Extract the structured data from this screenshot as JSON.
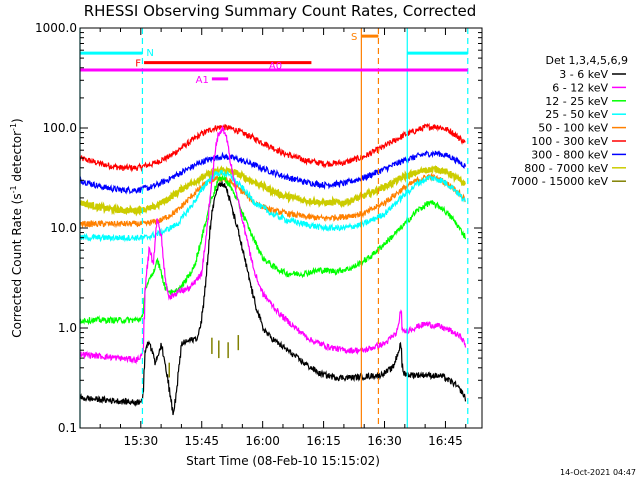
{
  "chart_data": {
    "type": "line",
    "title": "RHESSI Observing Summary Count Rates, Corrected",
    "xlabel": "Start Time (08-Feb-10 15:15:02)",
    "ylabel_main": "Corrected Count Rate (s",
    "ylabel_sup": "-1",
    "ylabel_rest": " detector",
    "ylabel_close": ")",
    "x_unit": "minutes since 15:00",
    "xlim": [
      15.03,
      114
    ],
    "ylim": [
      0.1,
      1000
    ],
    "yscale": "log",
    "grid": false,
    "legend_placement": "right",
    "detector_label": "Det 1,3,4,5,6,9",
    "x_ticks": [
      {
        "value": 30,
        "label": "15:30"
      },
      {
        "value": 45,
        "label": "15:45"
      },
      {
        "value": 60,
        "label": "16:00"
      },
      {
        "value": 75,
        "label": "16:15"
      },
      {
        "value": 90,
        "label": "16:30"
      },
      {
        "value": 105,
        "label": "16:45"
      }
    ],
    "y_ticks": [
      {
        "value": 0.1,
        "label": "0.1"
      },
      {
        "value": 1,
        "label": "1.0"
      },
      {
        "value": 10,
        "label": "10.0"
      },
      {
        "value": 100,
        "label": "100.0"
      },
      {
        "value": 1000,
        "label": "1000.0"
      }
    ],
    "series": [
      {
        "name": "3 - 6 keV",
        "color": "#000000",
        "points": [
          [
            15.0,
            0.2
          ],
          [
            29.0,
            0.18
          ],
          [
            30.5,
            0.2
          ],
          [
            31.0,
            0.6
          ],
          [
            32.0,
            0.75
          ],
          [
            33.5,
            0.45
          ],
          [
            35.0,
            0.7
          ],
          [
            36.5,
            0.32
          ],
          [
            38.0,
            0.13
          ],
          [
            40.0,
            0.7
          ],
          [
            42.0,
            0.75
          ],
          [
            44.0,
            0.8
          ],
          [
            45.0,
            1.3
          ],
          [
            46.0,
            3
          ],
          [
            47.0,
            10
          ],
          [
            48.0,
            20
          ],
          [
            49.0,
            27
          ],
          [
            50.0,
            28
          ],
          [
            51.0,
            25
          ],
          [
            52.0,
            18
          ],
          [
            54.0,
            9
          ],
          [
            56.0,
            4
          ],
          [
            58.0,
            1.8
          ],
          [
            60.0,
            1.0
          ],
          [
            62.0,
            0.8
          ],
          [
            66.0,
            0.6
          ],
          [
            70.0,
            0.45
          ],
          [
            74.0,
            0.35
          ],
          [
            78.0,
            0.32
          ],
          [
            82.0,
            0.32
          ],
          [
            86.0,
            0.33
          ],
          [
            89.0,
            0.34
          ],
          [
            92.0,
            0.4
          ],
          [
            94.0,
            0.7
          ],
          [
            94.4,
            0.36
          ],
          [
            96.0,
            0.34
          ],
          [
            100.0,
            0.34
          ],
          [
            104.0,
            0.33
          ],
          [
            107.0,
            0.28
          ],
          [
            109.0,
            0.23
          ],
          [
            110.0,
            0.19
          ]
        ]
      },
      {
        "name": "6 - 12 keV",
        "color": "#ff00ff",
        "points": [
          [
            15.0,
            0.55
          ],
          [
            29.0,
            0.48
          ],
          [
            30.5,
            0.55
          ],
          [
            31.0,
            2.5
          ],
          [
            32.0,
            6
          ],
          [
            33.0,
            4.5
          ],
          [
            34.0,
            13
          ],
          [
            35.0,
            8
          ],
          [
            36.0,
            3
          ],
          [
            37.0,
            2
          ],
          [
            39.0,
            2.3
          ],
          [
            42.0,
            2.5
          ],
          [
            45.0,
            3.5
          ],
          [
            46.0,
            8
          ],
          [
            47.0,
            20
          ],
          [
            48.0,
            50
          ],
          [
            49.0,
            85
          ],
          [
            50.0,
            100
          ],
          [
            51.0,
            85
          ],
          [
            52.0,
            45
          ],
          [
            54.0,
            18
          ],
          [
            56.0,
            8
          ],
          [
            58.0,
            3.5
          ],
          [
            60.0,
            2.2
          ],
          [
            64.0,
            1.4
          ],
          [
            68.0,
            1.0
          ],
          [
            72.0,
            0.75
          ],
          [
            76.0,
            0.65
          ],
          [
            80.0,
            0.6
          ],
          [
            85.0,
            0.6
          ],
          [
            90.0,
            0.7
          ],
          [
            93.0,
            0.9
          ],
          [
            94.0,
            1.5
          ],
          [
            94.4,
            0.9
          ],
          [
            97.0,
            1.0
          ],
          [
            100.0,
            1.1
          ],
          [
            103.0,
            1.05
          ],
          [
            106.0,
            0.95
          ],
          [
            109.0,
            0.8
          ],
          [
            110.0,
            0.65
          ]
        ]
      },
      {
        "name": "12 - 25 keV",
        "color": "#00ff00",
        "points": [
          [
            15.0,
            1.2
          ],
          [
            29.0,
            1.2
          ],
          [
            30.5,
            1.3
          ],
          [
            31.0,
            2.5
          ],
          [
            33.0,
            3.5
          ],
          [
            34.0,
            5
          ],
          [
            36.0,
            2.5
          ],
          [
            38.0,
            2.2
          ],
          [
            40.0,
            2.6
          ],
          [
            43.0,
            4
          ],
          [
            45.0,
            8
          ],
          [
            47.0,
            18
          ],
          [
            49.0,
            30
          ],
          [
            50.0,
            32
          ],
          [
            51.0,
            30
          ],
          [
            53.0,
            22
          ],
          [
            55.0,
            14
          ],
          [
            57.0,
            9
          ],
          [
            60.0,
            5
          ],
          [
            63.0,
            4
          ],
          [
            66.0,
            3.5
          ],
          [
            70.0,
            3.5
          ],
          [
            74.0,
            3.8
          ],
          [
            78.0,
            3.7
          ],
          [
            82.0,
            4
          ],
          [
            86.0,
            5
          ],
          [
            90.0,
            7
          ],
          [
            94.0,
            10
          ],
          [
            98.0,
            15
          ],
          [
            101.0,
            18
          ],
          [
            104.0,
            16
          ],
          [
            107.0,
            12
          ],
          [
            110.0,
            8
          ]
        ]
      },
      {
        "name": "25 - 50 keV",
        "color": "#00ffff",
        "points": [
          [
            15.0,
            8
          ],
          [
            29.0,
            8
          ],
          [
            31.0,
            8
          ],
          [
            35.0,
            9
          ],
          [
            39.0,
            11
          ],
          [
            43.0,
            18
          ],
          [
            46.0,
            28
          ],
          [
            48.0,
            34
          ],
          [
            50.0,
            36
          ],
          [
            52.0,
            33
          ],
          [
            55.0,
            25
          ],
          [
            58.0,
            18
          ],
          [
            62.0,
            14
          ],
          [
            66.0,
            12
          ],
          [
            70.0,
            11
          ],
          [
            75.0,
            10
          ],
          [
            80.0,
            10
          ],
          [
            85.0,
            11
          ],
          [
            90.0,
            14
          ],
          [
            94.0,
            20
          ],
          [
            98.0,
            28
          ],
          [
            101.0,
            32
          ],
          [
            104.0,
            30
          ],
          [
            107.0,
            25
          ],
          [
            110.0,
            18
          ]
        ]
      },
      {
        "name": "50 - 100 keV",
        "color": "#ff8000",
        "points": [
          [
            15.0,
            11
          ],
          [
            29.0,
            11
          ],
          [
            31.0,
            11
          ],
          [
            35.0,
            12
          ],
          [
            39.0,
            15
          ],
          [
            43.0,
            22
          ],
          [
            46.0,
            28
          ],
          [
            48.0,
            31
          ],
          [
            50.0,
            31
          ],
          [
            52.0,
            29
          ],
          [
            55.0,
            23
          ],
          [
            58.0,
            18
          ],
          [
            62.0,
            15
          ],
          [
            66.0,
            14
          ],
          [
            70.0,
            13
          ],
          [
            75.0,
            12.5
          ],
          [
            80.0,
            13
          ],
          [
            85.0,
            14
          ],
          [
            90.0,
            18
          ],
          [
            94.0,
            24
          ],
          [
            98.0,
            30
          ],
          [
            101.0,
            33
          ],
          [
            104.0,
            30
          ],
          [
            107.0,
            25
          ],
          [
            110.0,
            19
          ]
        ]
      },
      {
        "name": "100 - 300 keV",
        "color": "#ff0000",
        "points": [
          [
            15.0,
            50
          ],
          [
            20.0,
            44
          ],
          [
            25.0,
            40
          ],
          [
            29.0,
            40
          ],
          [
            33.0,
            44
          ],
          [
            37.0,
            52
          ],
          [
            41.0,
            68
          ],
          [
            45.0,
            88
          ],
          [
            48.0,
            100
          ],
          [
            50.0,
            103
          ],
          [
            53.0,
            97
          ],
          [
            57.0,
            82
          ],
          [
            61.0,
            68
          ],
          [
            65.0,
            56
          ],
          [
            70.0,
            48
          ],
          [
            75.0,
            44
          ],
          [
            80.0,
            45
          ],
          [
            85.0,
            52
          ],
          [
            90.0,
            66
          ],
          [
            95.0,
            86
          ],
          [
            100.0,
            102
          ],
          [
            103.0,
            104
          ],
          [
            106.0,
            94
          ],
          [
            109.0,
            76
          ],
          [
            110.0,
            70
          ]
        ]
      },
      {
        "name": "300 - 800 keV",
        "color": "#0000ff",
        "points": [
          [
            15.0,
            30
          ],
          [
            20.0,
            26
          ],
          [
            25.0,
            24
          ],
          [
            29.0,
            24
          ],
          [
            33.0,
            26
          ],
          [
            37.0,
            31
          ],
          [
            41.0,
            38
          ],
          [
            45.0,
            46
          ],
          [
            48.0,
            50
          ],
          [
            50.0,
            52
          ],
          [
            53.0,
            50
          ],
          [
            57.0,
            44
          ],
          [
            61.0,
            38
          ],
          [
            65.0,
            33
          ],
          [
            70.0,
            29
          ],
          [
            75.0,
            27
          ],
          [
            80.0,
            28
          ],
          [
            85.0,
            32
          ],
          [
            90.0,
            39
          ],
          [
            95.0,
            48
          ],
          [
            100.0,
            55
          ],
          [
            103.0,
            56
          ],
          [
            106.0,
            52
          ],
          [
            109.0,
            44
          ],
          [
            110.0,
            41
          ]
        ]
      },
      {
        "name": "800 - 7000 keV",
        "color": "#ffff00",
        "fill_color": "#cccc00",
        "points": [
          [
            15.0,
            18
          ],
          [
            20.0,
            16
          ],
          [
            25.0,
            15
          ],
          [
            29.0,
            15
          ],
          [
            33.0,
            16
          ],
          [
            37.0,
            20
          ],
          [
            41.0,
            26
          ],
          [
            45.0,
            32
          ],
          [
            48.0,
            36
          ],
          [
            50.0,
            38
          ],
          [
            53.0,
            36
          ],
          [
            57.0,
            30
          ],
          [
            61.0,
            25
          ],
          [
            65.0,
            21
          ],
          [
            70.0,
            19
          ],
          [
            75.0,
            18
          ],
          [
            80.0,
            18
          ],
          [
            85.0,
            21
          ],
          [
            90.0,
            26
          ],
          [
            95.0,
            33
          ],
          [
            100.0,
            38
          ],
          [
            103.0,
            39
          ],
          [
            106.0,
            35
          ],
          [
            109.0,
            29
          ],
          [
            110.0,
            27
          ]
        ]
      },
      {
        "name": "7000 - 15000 keV",
        "color": "#808000",
        "points": []
      }
    ],
    "vertical_lines": [
      {
        "x": 15.03,
        "color": "#00ffff",
        "style": "solid"
      },
      {
        "x": 30.4,
        "color": "#00ffff",
        "style": "dashed"
      },
      {
        "x": 95.6,
        "color": "#00ffff",
        "style": "solid"
      },
      {
        "x": 110.5,
        "color": "#00ffff",
        "style": "dashed"
      },
      {
        "x": 84.3,
        "color": "#ff8000",
        "style": "solid"
      },
      {
        "x": 88.5,
        "color": "#ff8000",
        "style": "dashed"
      }
    ],
    "state_bars": [
      {
        "label": "N",
        "color": "#00ffff",
        "y": 560,
        "segments": [
          [
            15.03,
            30.4
          ],
          [
            95.6,
            110.5
          ]
        ]
      },
      {
        "label": "F",
        "color": "#ff0000",
        "y": 450,
        "segments": [
          [
            30.8,
            72.0
          ]
        ]
      },
      {
        "label": "A0",
        "color": "#ff00ff",
        "y": 380,
        "segments": [
          [
            15.03,
            110.5
          ]
        ]
      },
      {
        "label": "A1",
        "color": "#ff00ff",
        "y": 310,
        "segments": [
          [
            47.5,
            51.5
          ]
        ]
      },
      {
        "label": "S",
        "color": "#ff8000",
        "y": 830,
        "segments": [
          [
            84.3,
            88.5
          ]
        ]
      }
    ],
    "brown_ticks": [
      {
        "x": 37.0,
        "y0": 0.32,
        "y1": 0.45
      },
      {
        "x": 47.5,
        "y0": 0.55,
        "y1": 0.8
      },
      {
        "x": 49.2,
        "y0": 0.5,
        "y1": 0.75
      },
      {
        "x": 51.5,
        "y0": 0.5,
        "y1": 0.72
      },
      {
        "x": 54.0,
        "y0": 0.6,
        "y1": 0.85
      }
    ]
  },
  "footer": {
    "timestamp": "14-Oct-2021 04:47"
  }
}
